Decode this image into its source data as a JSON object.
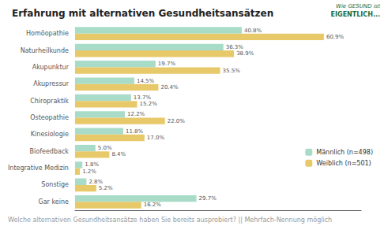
{
  "chart_data": {
    "type": "bar",
    "orientation": "horizontal",
    "title": "Erfahrung mit alternativen Gesundheitsansätzen",
    "annotations": [
      "Welche alternativen Gesundheitsansätze haben Sie bereits ausprobiert? || Mehrfach-Nennung möglich",
      "Wie GESUND ist",
      "EIGENTLICH..."
    ],
    "categories": [
      "Homöopathie",
      "Naturheilkunde",
      "Akupunktur",
      "Akupressur",
      "Chiropraktik",
      "Osteopathie",
      "Kinesiologie",
      "Biofeedback",
      "Integrative Medizin",
      "Sonstige",
      "Gar keine"
    ],
    "series": [
      {
        "name": "Männlich (n=498)",
        "color": "#a8dcc8",
        "values": [
          40.8,
          36.3,
          19.7,
          14.5,
          13.7,
          12.2,
          11.8,
          5.0,
          1.8,
          2.8,
          29.7
        ],
        "value_labels": [
          "40.8%",
          "36.3%",
          "19.7%",
          "14.5%",
          "13.7%",
          "12.2%",
          "11.8%",
          "5.0%",
          "1.8%",
          "2.8%",
          "29.7%"
        ]
      },
      {
        "name": "Weiblich (n=501)",
        "color": "#e8c96a",
        "values": [
          60.9,
          38.9,
          35.5,
          20.4,
          15.2,
          22.0,
          17.0,
          8.4,
          1.2,
          5.2,
          16.2
        ],
        "value_labels": [
          "60.9%",
          "38.9%",
          "35.5%",
          "20.4%",
          "15.2%",
          "22.0%",
          "17.0%",
          "8.4%",
          "1.2%",
          "5.2%",
          "16.2%"
        ]
      }
    ],
    "xlim": [
      0,
      70
    ],
    "data_labels": true,
    "tick_labels": "y",
    "grid": false,
    "legend": "right"
  }
}
